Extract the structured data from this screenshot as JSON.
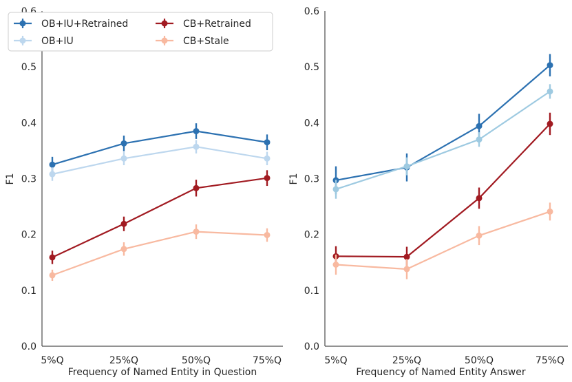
{
  "chart_data": [
    {
      "type": "line",
      "title": "",
      "xlabel": "Frequency of Named Entity in Question",
      "ylabel": "F1",
      "ylim": [
        0,
        0.6
      ],
      "yticks": [
        "0.0",
        "0.1",
        "0.2",
        "0.3",
        "0.4",
        "0.5",
        "0.6"
      ],
      "categories": [
        "5%Q",
        "25%Q",
        "50%Q",
        "75%Q"
      ],
      "legend": "top-left",
      "series": [
        {
          "name": "OB+IU+Retrained",
          "color": "#2c71b1",
          "values": [
            0.325,
            0.363,
            0.385,
            0.365
          ],
          "err": [
            0.014,
            0.014,
            0.014,
            0.014
          ]
        },
        {
          "name": "OB+IU",
          "color": "#bdd7ee",
          "values": [
            0.308,
            0.336,
            0.357,
            0.336
          ],
          "err": [
            0.012,
            0.012,
            0.012,
            0.012
          ]
        },
        {
          "name": "CB+Retrained",
          "color": "#a11a21",
          "values": [
            0.159,
            0.219,
            0.283,
            0.301
          ],
          "err": [
            0.012,
            0.013,
            0.015,
            0.014
          ]
        },
        {
          "name": "CB+Stale",
          "color": "#f8b9a0",
          "values": [
            0.127,
            0.174,
            0.205,
            0.199
          ],
          "err": [
            0.01,
            0.012,
            0.013,
            0.012
          ]
        }
      ]
    },
    {
      "type": "line",
      "title": "",
      "xlabel": "Frequency of Named Entity Answer",
      "ylabel": "F1",
      "ylim": [
        0,
        0.6
      ],
      "yticks": [
        "0.0",
        "0.1",
        "0.2",
        "0.3",
        "0.4",
        "0.5",
        "0.6"
      ],
      "categories": [
        "5%Q",
        "25%Q",
        "50%Q",
        "75%Q"
      ],
      "series": [
        {
          "name": "OB+IU+Retrained",
          "color": "#2c71b1",
          "values": [
            0.297,
            0.32,
            0.394,
            0.503
          ],
          "err": [
            0.025,
            0.025,
            0.022,
            0.02
          ]
        },
        {
          "name": "OB+IU",
          "color": "#9ecae1",
          "values": [
            0.281,
            0.322,
            0.37,
            0.456
          ],
          "err": [
            0.017,
            0.016,
            0.013,
            0.013
          ]
        },
        {
          "name": "CB+Retrained",
          "color": "#a11a21",
          "values": [
            0.161,
            0.16,
            0.265,
            0.398
          ],
          "err": [
            0.018,
            0.018,
            0.019,
            0.02
          ]
        },
        {
          "name": "CB+Stale",
          "color": "#f8b9a0",
          "values": [
            0.146,
            0.138,
            0.198,
            0.241
          ],
          "err": [
            0.018,
            0.018,
            0.017,
            0.016
          ]
        }
      ]
    }
  ]
}
